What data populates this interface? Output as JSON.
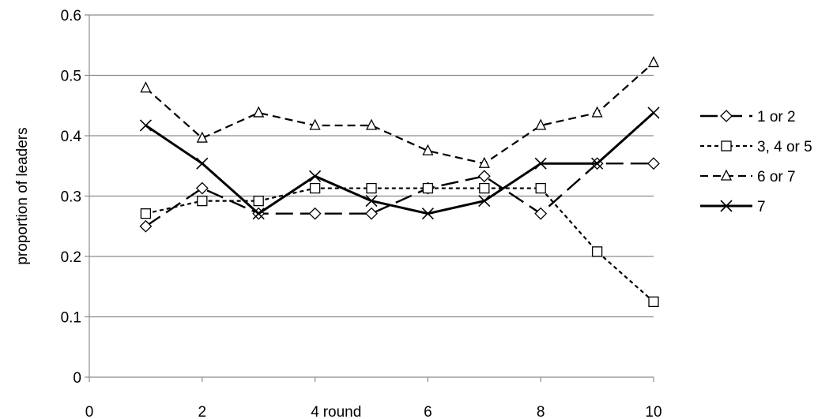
{
  "chart_data": {
    "type": "line",
    "title": "",
    "xlabel": "round",
    "ylabel": "proportion of leaders",
    "xlim": [
      0,
      10
    ],
    "ylim": [
      0,
      0.6
    ],
    "xticks": [
      0,
      2,
      4,
      6,
      8,
      10
    ],
    "xtick_labels": [
      "0",
      "2",
      "4",
      "6",
      "8",
      "10"
    ],
    "yticks": [
      0,
      0.1,
      0.2,
      0.3,
      0.4,
      0.5,
      0.6
    ],
    "ytick_labels": [
      "0",
      "0.1",
      "0.2",
      "0.3",
      "0.4",
      "0.5",
      "0.6"
    ],
    "grid": "horizontal",
    "legend_position": "right",
    "x": [
      1,
      2,
      3,
      4,
      5,
      6,
      7,
      8,
      9,
      10
    ],
    "series": [
      {
        "name": "1 or 2",
        "marker": "diamond",
        "dash": "long-dash",
        "values": [
          0.25,
          0.313,
          0.271,
          0.271,
          0.271,
          0.313,
          0.333,
          0.271,
          0.354,
          0.354
        ]
      },
      {
        "name": "3, 4 or 5",
        "marker": "square",
        "dash": "dotted",
        "values": [
          0.271,
          0.292,
          0.292,
          0.313,
          0.313,
          0.313,
          0.313,
          0.313,
          0.208,
          0.125
        ]
      },
      {
        "name": "6 or 7",
        "marker": "triangle",
        "dash": "dashed",
        "values": [
          0.479,
          0.396,
          0.438,
          0.417,
          0.417,
          0.375,
          0.354,
          0.417,
          0.438,
          0.521
        ]
      },
      {
        "name": "7",
        "marker": "x",
        "dash": "solid",
        "values": [
          0.417,
          0.354,
          0.271,
          0.333,
          0.292,
          0.271,
          0.292,
          0.354,
          0.354,
          0.438
        ]
      }
    ]
  }
}
